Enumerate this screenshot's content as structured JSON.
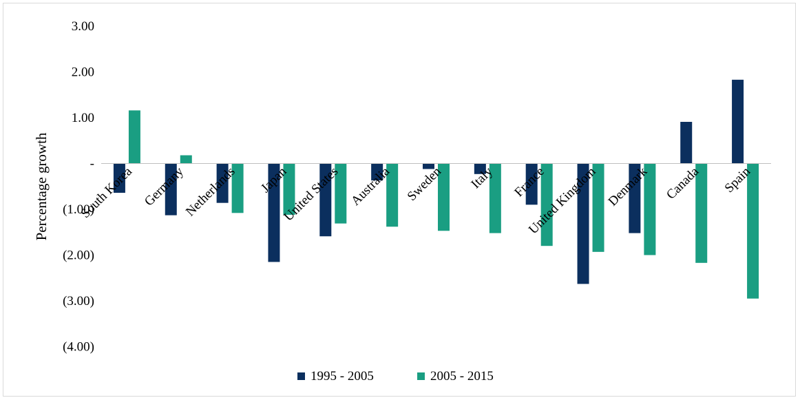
{
  "chart_data": {
    "type": "bar",
    "title": "",
    "xlabel": "",
    "ylabel": "Percentage growth",
    "ylim": [
      -4,
      3
    ],
    "yticks": [
      3,
      2,
      1,
      0,
      -1,
      -2,
      -3,
      -4
    ],
    "ytick_labels": [
      "3.00",
      "2.00",
      "1.00",
      "-",
      "(1.00)",
      "(2.00)",
      "(3.00)",
      "(4.00)"
    ],
    "legend_position": "bottom",
    "grid": false,
    "categories": [
      "South Korea",
      "Germany",
      "Netherlands",
      "Japan",
      "United States",
      "Australia",
      "Sweden",
      "Italy",
      "France",
      "United Kingdom",
      "Denmark",
      "Canada",
      "Spain"
    ],
    "series": [
      {
        "name": "1995 - 2005",
        "color": "#0b2f5e",
        "values": [
          -0.64,
          -1.13,
          -0.86,
          -2.15,
          -1.59,
          -0.37,
          -0.12,
          -0.23,
          -0.9,
          -2.63,
          -1.52,
          0.91,
          1.83
        ]
      },
      {
        "name": "2005 - 2015",
        "color": "#1a9e82",
        "values": [
          1.16,
          0.18,
          -1.08,
          -1.12,
          -1.31,
          -1.38,
          -1.47,
          -1.52,
          -1.8,
          -1.93,
          -2.0,
          -2.17,
          -2.95
        ]
      }
    ]
  }
}
